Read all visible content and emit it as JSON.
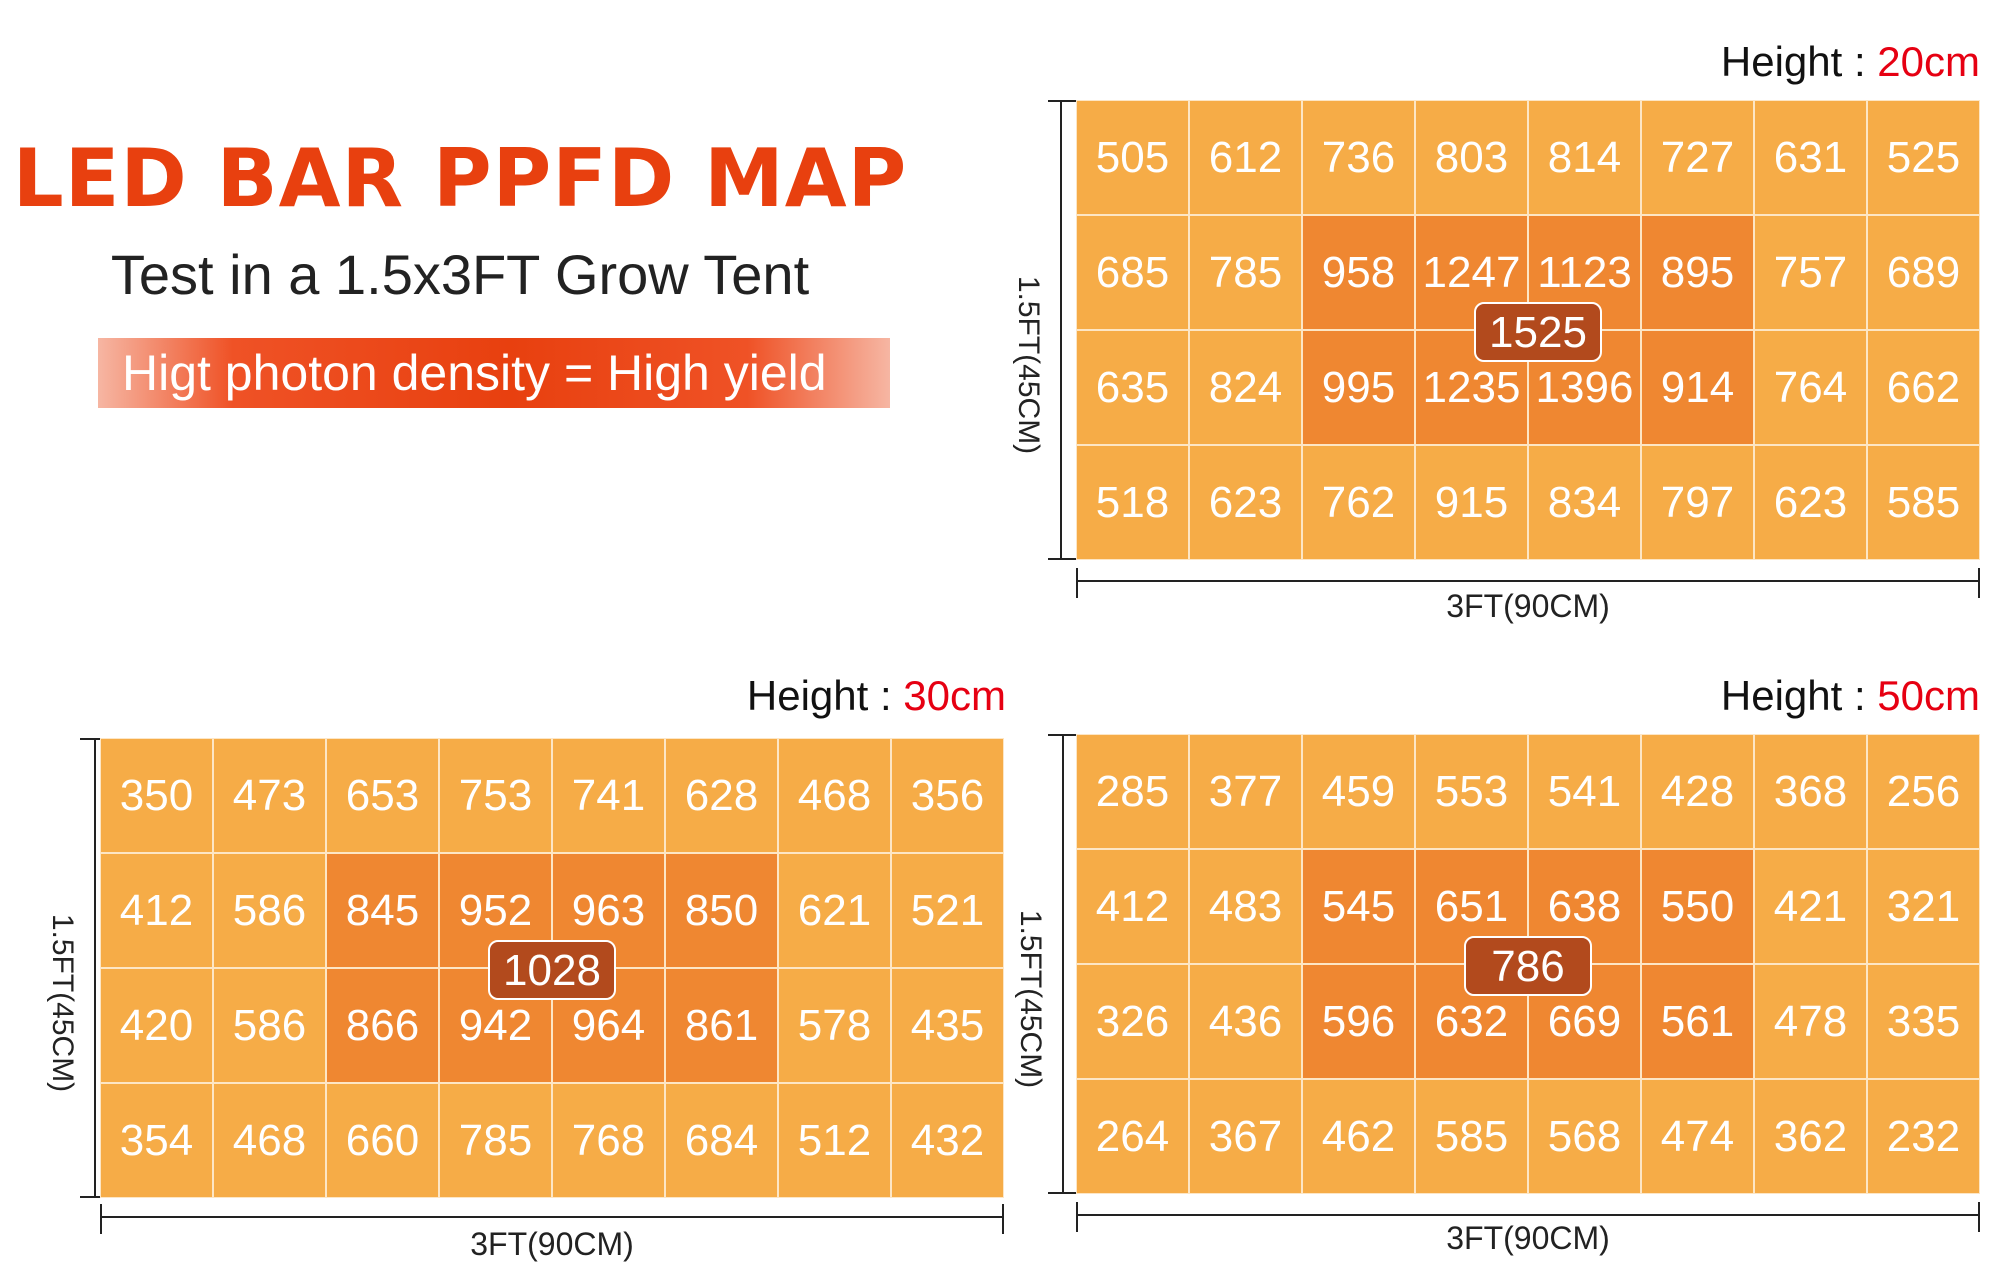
{
  "header": {
    "title": "LED BAR PPFD MAP",
    "subtitle": "Test in a 1.5x3FT Grow Tent",
    "banner": "Higt photon density = High yield"
  },
  "colors": {
    "title": "#e8400f",
    "cell": "#f6ac47",
    "hot_cell": "#ef8731",
    "peak_badge": "#b24a1d",
    "height_value": "#e60012"
  },
  "chart_data": [
    {
      "type": "heatmap",
      "height_label": "Height : ",
      "height_value": "20cm",
      "xlabel": "3FT(90CM)",
      "ylabel": "1.5FT(45CM)",
      "peak": "1525",
      "rows": [
        [
          "505",
          "612",
          "736",
          "803",
          "814",
          "727",
          "631",
          "525"
        ],
        [
          "685",
          "785",
          "958",
          "1247",
          "1123",
          "895",
          "757",
          "689"
        ],
        [
          "635",
          "824",
          "995",
          "1235",
          "1396",
          "914",
          "764",
          "662"
        ],
        [
          "518",
          "623",
          "762",
          "915",
          "834",
          "797",
          "623",
          "585"
        ]
      ],
      "hot_cells": [
        [
          1,
          2
        ],
        [
          1,
          3
        ],
        [
          1,
          4
        ],
        [
          1,
          5
        ],
        [
          2,
          2
        ],
        [
          2,
          3
        ],
        [
          2,
          4
        ],
        [
          2,
          5
        ]
      ]
    },
    {
      "type": "heatmap",
      "height_label": "Height : ",
      "height_value": "30cm",
      "xlabel": "3FT(90CM)",
      "ylabel": "1.5FT(45CM)",
      "peak": "1028",
      "rows": [
        [
          "350",
          "473",
          "653",
          "753",
          "741",
          "628",
          "468",
          "356"
        ],
        [
          "412",
          "586",
          "845",
          "952",
          "963",
          "850",
          "621",
          "521"
        ],
        [
          "420",
          "586",
          "866",
          "942",
          "964",
          "861",
          "578",
          "435"
        ],
        [
          "354",
          "468",
          "660",
          "785",
          "768",
          "684",
          "512",
          "432"
        ]
      ],
      "hot_cells": [
        [
          1,
          2
        ],
        [
          1,
          3
        ],
        [
          1,
          4
        ],
        [
          1,
          5
        ],
        [
          2,
          2
        ],
        [
          2,
          3
        ],
        [
          2,
          4
        ],
        [
          2,
          5
        ]
      ]
    },
    {
      "type": "heatmap",
      "height_label": "Height : ",
      "height_value": "50cm",
      "xlabel": "3FT(90CM)",
      "ylabel": "1.5FT(45CM)",
      "peak": "786",
      "rows": [
        [
          "285",
          "377",
          "459",
          "553",
          "541",
          "428",
          "368",
          "256"
        ],
        [
          "412",
          "483",
          "545",
          "651",
          "638",
          "550",
          "421",
          "321"
        ],
        [
          "326",
          "436",
          "596",
          "632",
          "669",
          "561",
          "478",
          "335"
        ],
        [
          "264",
          "367",
          "462",
          "585",
          "568",
          "474",
          "362",
          "232"
        ]
      ],
      "hot_cells": [
        [
          1,
          2
        ],
        [
          1,
          3
        ],
        [
          1,
          4
        ],
        [
          1,
          5
        ],
        [
          2,
          2
        ],
        [
          2,
          3
        ],
        [
          2,
          4
        ],
        [
          2,
          5
        ]
      ]
    }
  ]
}
